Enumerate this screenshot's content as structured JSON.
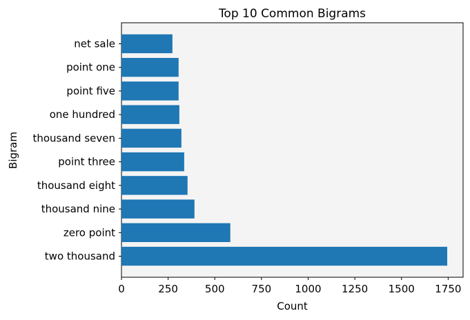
{
  "chart_data": {
    "type": "bar",
    "orientation": "horizontal",
    "title": "Top 10 Common Bigrams",
    "xlabel": "Count",
    "ylabel": "Bigram",
    "categories": [
      "two thousand",
      "zero point",
      "thousand nine",
      "thousand eight",
      "point three",
      "thousand seven",
      "one hundred",
      "point five",
      "point one",
      "net sale"
    ],
    "values": [
      1745,
      583,
      391,
      354,
      336,
      321,
      310,
      306,
      306,
      273
    ],
    "xlim": [
      0,
      1830
    ],
    "xticks": [
      0,
      250,
      500,
      750,
      1000,
      1250,
      1500,
      1750
    ],
    "grid": false,
    "bar_color": "#1f77b4",
    "plot_background": "#f4f4f4"
  }
}
